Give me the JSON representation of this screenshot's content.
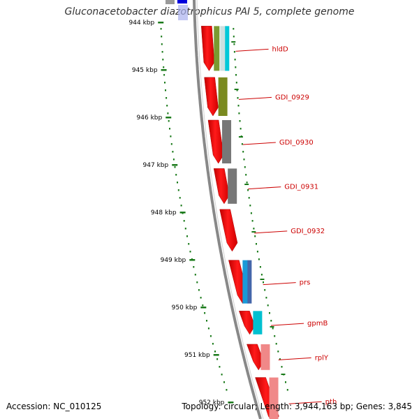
{
  "title": "Gluconacetobacter diazotrophicus PAI 5, complete genome",
  "footer": {
    "accession": "Accession: NC_010125",
    "topology": "Topology: circular; Length: 3,944,163 bp; Genes: 3,845"
  },
  "ticks": [
    {
      "label": "944 kbp",
      "kbp": 944
    },
    {
      "label": "945 kbp",
      "kbp": 945
    },
    {
      "label": "946 kbp",
      "kbp": 946
    },
    {
      "label": "947 kbp",
      "kbp": 947
    },
    {
      "label": "948 kbp",
      "kbp": 948
    },
    {
      "label": "949 kbp",
      "kbp": 949
    },
    {
      "label": "950 kbp",
      "kbp": 950
    },
    {
      "label": "951 kbp",
      "kbp": 951
    },
    {
      "label": "952 kbp",
      "kbp": 952
    }
  ],
  "genes": [
    {
      "name": "hldD",
      "start_kbp": 944.02,
      "end_kbp": 945.05,
      "cog_color": "#cce0e0",
      "second_color": "#00c8d8",
      "accent_color": "#7a9a30"
    },
    {
      "name": "GDI_0929",
      "start_kbp": 945.1,
      "end_kbp": 946.0,
      "cog_color": "#7a8a20",
      "second_color": "",
      "accent_color": ""
    },
    {
      "name": "GDI_0930",
      "start_kbp": 946.0,
      "end_kbp": 947.0,
      "cog_color": "#777777",
      "second_color": "",
      "accent_color": ""
    },
    {
      "name": "GDI_0931",
      "start_kbp": 947.02,
      "end_kbp": 947.85,
      "cog_color": "#777777",
      "second_color": "",
      "accent_color": ""
    },
    {
      "name": "GDI_0932",
      "start_kbp": 947.88,
      "end_kbp": 948.85,
      "cog_color": "",
      "second_color": "",
      "accent_color": ""
    },
    {
      "name": "prs",
      "start_kbp": 948.95,
      "end_kbp": 949.95,
      "cog_color": "#1a9ad8",
      "second_color": "#4466aa",
      "accent_color": ""
    },
    {
      "name": "gpmB",
      "start_kbp": 950.02,
      "end_kbp": 950.6,
      "cog_color": "#00c0d0",
      "second_color": "",
      "accent_color": ""
    },
    {
      "name": "rplY",
      "start_kbp": 950.72,
      "end_kbp": 951.35,
      "cog_color": "#f08888",
      "second_color": "",
      "accent_color": ""
    },
    {
      "name": "pth",
      "start_kbp": 951.42,
      "end_kbp": 952.5,
      "cog_color": "#f08888",
      "second_color": "",
      "accent_color": ""
    }
  ],
  "colors": {
    "cds": "#ee0000",
    "backbone": "#888888",
    "ticks": "#1a7a1a",
    "gc_dots": "#1a7a1a",
    "label": "#cc0000",
    "top_partial_blue": "#0000dd",
    "top_partial_light": "#aab0ee"
  }
}
